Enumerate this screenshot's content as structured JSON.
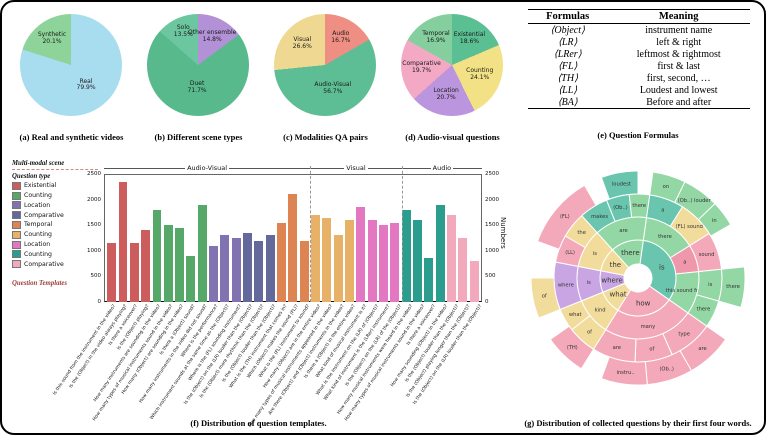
{
  "chart_data": [
    {
      "type": "pie",
      "caption": "(a) Real and synthetic videos",
      "slices": [
        {
          "label": "Real",
          "pct": 79.9,
          "pct_label": "79.9%",
          "color": "#a8ddf0",
          "label_r": 0.5
        },
        {
          "label": "Synthetic",
          "pct": 20.1,
          "pct_label": "20.1%",
          "color": "#8ed49a",
          "label_r": 0.63
        }
      ]
    },
    {
      "type": "pie",
      "caption": "(b) Different scene types",
      "slices": [
        {
          "label": "Other ensemble",
          "pct": 14.8,
          "pct_label": "14.8%",
          "color": "#b391d6",
          "label_r": 0.62
        },
        {
          "label": "Duet",
          "pct": 71.7,
          "pct_label": "71.7%",
          "color": "#58b98c",
          "label_r": 0.45
        },
        {
          "label": "Solo",
          "pct": 13.5,
          "pct_label": "13.5%",
          "color": "#6cc7a1",
          "label_r": 0.7
        }
      ]
    },
    {
      "type": "pie",
      "caption": "(c) Modalities QA pairs",
      "slices": [
        {
          "label": "Audio",
          "pct": 16.7,
          "pct_label": "16.7%",
          "color": "#ef8e83",
          "label_r": 0.62
        },
        {
          "label": "Audio-Visual",
          "pct": 56.7,
          "pct_label": "56.7%",
          "color": "#5dbd94",
          "label_r": 0.5
        },
        {
          "label": "Visual",
          "pct": 26.6,
          "pct_label": "26.6%",
          "color": "#efd992",
          "label_r": 0.6
        }
      ]
    },
    {
      "type": "pie",
      "caption": "(d) Audio-visual questions",
      "slices": [
        {
          "label": "Existential",
          "pct": 18.6,
          "pct_label": "18.6%",
          "color": "#5abf93",
          "label_r": 0.62
        },
        {
          "label": "Counting",
          "pct": 24.1,
          "pct_label": "24.1%",
          "color": "#f2e285",
          "label_r": 0.58
        },
        {
          "label": "Location",
          "pct": 20.7,
          "pct_label": "20.7%",
          "color": "#bb95dd",
          "label_r": 0.6
        },
        {
          "label": "Comparative",
          "pct": 19.7,
          "pct_label": "19.7%",
          "color": "#f3a8c4",
          "label_r": 0.6
        },
        {
          "label": "Temporal",
          "pct": 16.9,
          "pct_label": "16.9%",
          "color": "#84cf9d",
          "label_r": 0.62
        }
      ]
    },
    {
      "type": "table",
      "caption": "(e) Question Formulas",
      "headers": [
        "Formulas",
        "Meaning"
      ],
      "rows": [
        [
          "⟨Object⟩",
          "instrument name"
        ],
        [
          "⟨LR⟩",
          "left & right"
        ],
        [
          "⟨LRer⟩",
          "leftmost & rightmost"
        ],
        [
          "⟨FL⟩",
          "first & last"
        ],
        [
          "⟨TH⟩",
          "first, second, …"
        ],
        [
          "⟨LL⟩",
          "Loudest and lowest"
        ],
        [
          "⟨BA⟩",
          "Before and after"
        ]
      ]
    },
    {
      "type": "bar",
      "caption": "(f) Distribution of question templates.",
      "ylabel": "Numbers",
      "ylim": [
        0,
        2500
      ],
      "yticks": [
        0,
        500,
        1000,
        1500,
        2000,
        2500
      ],
      "legend_title1": "Multi-modal scene",
      "legend_title2": "Question type",
      "legend_footer": "Question Templates",
      "sections": [
        {
          "label": "Audio-Visual",
          "count": 18
        },
        {
          "label": "Visual",
          "count": 8
        },
        {
          "label": "Audio",
          "count": 7
        }
      ],
      "groups": [
        {
          "label": "Existential",
          "color": "#cd5c5c",
          "count": 4
        },
        {
          "label": "Counting",
          "color": "#55a868",
          "count": 5
        },
        {
          "label": "Location",
          "color": "#8172b2",
          "count": 3
        },
        {
          "label": "Comparative",
          "color": "#64699b",
          "count": 3
        },
        {
          "label": "Temporal",
          "color": "#dd8452",
          "count": 3
        },
        {
          "label": "Counting",
          "color": "#e8b168",
          "count": 4
        },
        {
          "label": "Location",
          "color": "#e377c2",
          "count": 4
        },
        {
          "label": "Counting",
          "color": "#2a9d8f",
          "count": 4
        },
        {
          "label": "Comparative",
          "color": "#f2a9bb",
          "count": 3
        }
      ],
      "values": [
        1150,
        2350,
        1150,
        1400,
        1800,
        1500,
        1450,
        900,
        1900,
        1100,
        1300,
        1250,
        1350,
        1200,
        1300,
        1550,
        2100,
        1200,
        1700,
        1650,
        1300,
        1600,
        1850,
        1600,
        1500,
        1550,
        1800,
        1600,
        850,
        1900,
        1700,
        1250,
        800
      ],
      "labels": [
        "Is this sound from the instrument in the video?",
        "Is the ⟨Object⟩ in the video always playing?",
        "Is there a voiceover?",
        "Is the ⟨Object⟩ playing?",
        "How many instruments are sounding in the video?",
        "How many types of musical instruments sound in the video?",
        "How many ⟨Object⟩ are sounding in the video?",
        "Is there a ⟨Object⟩ sound?",
        "How many instruments in the video did not sound?",
        "Where is the performance?",
        "Which instrument sounds at the same time as the ⟨Object⟩?",
        "Where is the ⟨FL⟩ sounding instrument?",
        "Is the ⟨Object⟩ on the ⟨LR⟩ louder than the ⟨Object⟩?",
        "Is the ⟨Object⟩ more rhythmic than the ⟨Object⟩?",
        "Is the ⟨Object⟩ louder than the ⟨Object⟩?",
        "What is the ⟨TH⟩ instrument that comes in?",
        "Which ⟨Object⟩ makes the sound ⟨FL⟩?",
        "What is the ⟨FL⟩ instrument to sound?",
        "How many ⟨Object⟩ are in the entire video?",
        "How many types of musical instruments appeared in the video?",
        "Are there ⟨Object⟩ and ⟨Object⟩ instruments in the video?",
        "Is there a ⟨Object⟩ in the entire video?",
        "What kind of musical instrument is it?",
        "What is the instrument on the ⟨LR⟩ of ⟨Object⟩?",
        "What kind of instrument is the ⟨LRer⟩ instrument?",
        "Is the ⟨Object⟩ on the ⟨LR⟩ of the ⟨Object⟩?",
        "How many musical instruments were heard in the video?",
        "How many types of musical instruments sound in the video?",
        "Is there a voiceover?",
        "How many sounding ⟨Object⟩ in the video?",
        "Is the ⟨Object⟩ louder than the ⟨Object⟩?",
        "Is the ⟨Object⟩ playing longer than the ⟨Object⟩?",
        "Is the ⟨Object⟩ on the ⟨LR⟩ louder than the ⟨Object⟩?"
      ]
    },
    {
      "type": "sunburst",
      "caption": "(g) Distribution of collected questions by their first four words.",
      "segments": [
        {
          "ring": 1,
          "a0": 8,
          "a1": 125,
          "color": "#6ac5ae",
          "label": "is"
        },
        {
          "ring": 1,
          "a0": 125,
          "a1": 212,
          "color": "#f3a9b9",
          "label": "how"
        },
        {
          "ring": 1,
          "a0": 212,
          "a1": 248,
          "color": "#f2dc9b",
          "label": "what"
        },
        {
          "ring": 1,
          "a0": 248,
          "a1": 281,
          "color": "#c9a6e3",
          "label": "where"
        },
        {
          "ring": 1,
          "a0": 281,
          "a1": 318,
          "color": "#f2dc9b",
          "label": "the"
        },
        {
          "ring": 1,
          "a0": 318,
          "a1": 368,
          "color": "#92d7a4",
          "label": "there"
        },
        {
          "ring": 2,
          "a0": 8,
          "a1": 58,
          "color": "#92d7a4",
          "label": "there"
        },
        {
          "ring": 2,
          "a0": 58,
          "a1": 84,
          "color": "#ef97ab",
          "label": "a"
        },
        {
          "ring": 2,
          "a0": 84,
          "a1": 125,
          "color": "#92d7a4",
          "label": "this sound from"
        },
        {
          "ring": 2,
          "a0": 125,
          "a1": 212,
          "color": "#f3a9b9",
          "label": "many"
        },
        {
          "ring": 2,
          "a0": 212,
          "a1": 248,
          "color": "#f2dc9b",
          "label": "kind"
        },
        {
          "ring": 2,
          "a0": 248,
          "a1": 281,
          "color": "#c9a6e3",
          "label": "is"
        },
        {
          "ring": 2,
          "a0": 281,
          "a1": 318,
          "color": "#f2dc9b",
          "label": "is"
        },
        {
          "ring": 2,
          "a0": 318,
          "a1": 368,
          "color": "#92d7a4",
          "label": "are"
        },
        {
          "ring": 3,
          "a0": 8,
          "a1": 32,
          "color": "#6ac5ae",
          "label": "a"
        },
        {
          "ring": 3,
          "a0": 32,
          "a1": 58,
          "color": "#f2dc9b",
          "label": "⟨FL⟩ sound"
        },
        {
          "ring": 3,
          "a0": 58,
          "a1": 84,
          "color": "#f3a9b9",
          "label": "sound"
        },
        {
          "ring": 3,
          "a0": 84,
          "a1": 106,
          "color": "#92d7a4",
          "label": "is"
        },
        {
          "ring": 3,
          "a0": 106,
          "a1": 125,
          "color": "#92d7a4",
          "label": "there"
        },
        {
          "ring": 3,
          "a0": 125,
          "a1": 156,
          "color": "#f3a9b9",
          "label": "type"
        },
        {
          "ring": 3,
          "a0": 156,
          "a1": 182,
          "color": "#f3a9b9",
          "label": "of"
        },
        {
          "ring": 3,
          "a0": 182,
          "a1": 212,
          "color": "#f3a9b9",
          "label": "are"
        },
        {
          "ring": 3,
          "a0": 212,
          "a1": 232,
          "color": "#f2dc9b",
          "label": "of"
        },
        {
          "ring": 3,
          "a0": 232,
          "a1": 248,
          "color": "#f2dc9b",
          "label": "what"
        },
        {
          "ring": 3,
          "a0": 248,
          "a1": 281,
          "color": "#c9a6e3",
          "label": "where"
        },
        {
          "ring": 3,
          "a0": 281,
          "a1": 300,
          "color": "#f3a9b9",
          "label": "⟨LL⟩"
        },
        {
          "ring": 3,
          "a0": 300,
          "a1": 318,
          "color": "#f2dc9b",
          "label": "the"
        },
        {
          "ring": 3,
          "a0": 318,
          "a1": 338,
          "color": "#6ac5ae",
          "label": "makes"
        },
        {
          "ring": 3,
          "a0": 338,
          "a1": 354,
          "color": "#6ac5ae",
          "label": "⟨Ob..⟩"
        },
        {
          "ring": 3,
          "a0": 354,
          "a1": 368,
          "color": "#92d7a4",
          "label": "there"
        },
        {
          "ring": 4,
          "a0": 8,
          "a1": 26,
          "color": "#92d7a4",
          "label": "on"
        },
        {
          "ring": 4,
          "a0": 26,
          "a1": 46,
          "color": "#92d7a4",
          "label": "⟨Ob..⟩ louder"
        },
        {
          "ring": 4,
          "a0": 46,
          "a1": 60,
          "color": "#92d7a4",
          "label": "in"
        },
        {
          "ring": 4,
          "a0": 84,
          "a1": 106,
          "color": "#92d7a4",
          "label": "there"
        },
        {
          "ring": 4,
          "a0": 125,
          "a1": 150,
          "color": "#f3a9b9",
          "label": "are"
        },
        {
          "ring": 4,
          "a0": 150,
          "a1": 175,
          "color": "#f3a9b9",
          "label": "⟨Ob..⟩"
        },
        {
          "ring": 4,
          "a0": 175,
          "a1": 200,
          "color": "#f3a9b9",
          "label": "instru.."
        },
        {
          "ring": 4,
          "a0": 212,
          "a1": 235,
          "color": "#f3a9b9",
          "label": "⟨TH⟩"
        },
        {
          "ring": 4,
          "a0": 248,
          "a1": 270,
          "color": "#f2dc9b",
          "label": "of"
        },
        {
          "ring": 4,
          "a0": 290,
          "a1": 330,
          "color": "#f3a9b9",
          "label": "⟨FL⟩"
        },
        {
          "ring": 4,
          "a0": 340,
          "a1": 360,
          "color": "#6ac5ae",
          "label": "loudest"
        }
      ]
    }
  ]
}
